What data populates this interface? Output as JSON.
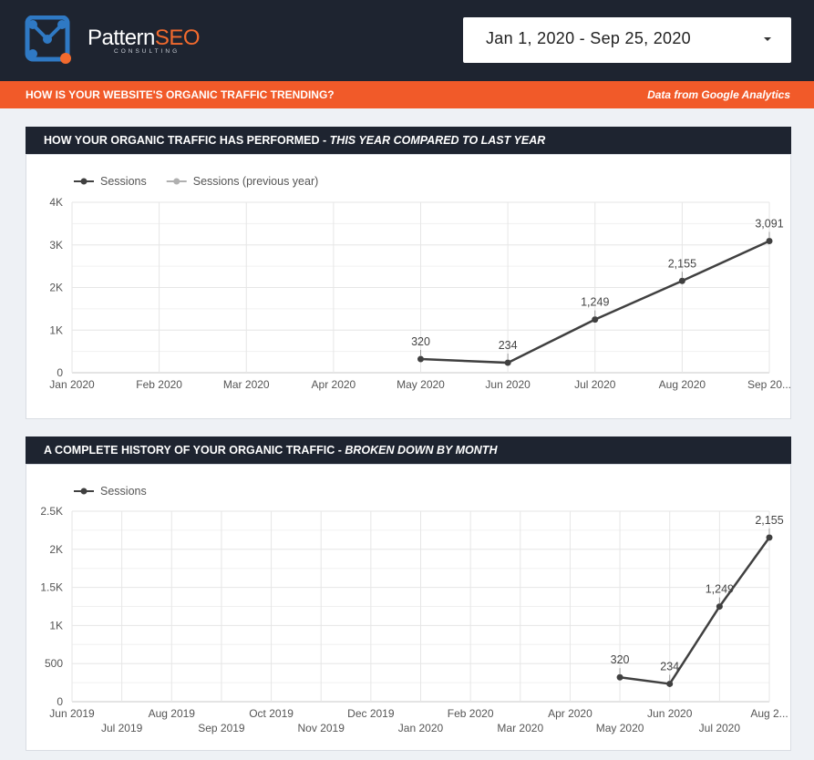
{
  "brand": {
    "name_part1": "Pattern",
    "name_part2": "SEO",
    "subtitle": "CONSULTING",
    "accent_color": "#f26a2e",
    "secondary_color": "#2f79c4"
  },
  "header": {
    "date_range": "Jan 1, 2020 - Sep 25, 2020",
    "question": "HOW IS YOUR WEBSITE'S ORGANIC TRAFFIC TRENDING?",
    "source": "Data from Google Analytics"
  },
  "section1": {
    "title_main": "HOW YOUR ORGANIC TRAFFIC HAS PERFORMED - ",
    "title_em": "THIS YEAR COMPARED TO LAST YEAR"
  },
  "section2": {
    "title_main": "A COMPLETE HISTORY OF YOUR ORGANIC TRAFFIC - ",
    "title_em": "BROKEN DOWN BY MONTH"
  },
  "chart_data": [
    {
      "type": "line",
      "x": [
        "Jan 2020",
        "Feb 2020",
        "Mar 2020",
        "Apr 2020",
        "May 2020",
        "Jun 2020",
        "Jul 2020",
        "Aug 2020",
        "Sep 20..."
      ],
      "series": [
        {
          "name": "Sessions",
          "color": "#404040",
          "values": [
            null,
            null,
            null,
            null,
            320,
            234,
            1249,
            2155,
            3091
          ],
          "labels": [
            "",
            "",
            "",
            "",
            "320",
            "234",
            "1,249",
            "2,155",
            "3,091"
          ]
        },
        {
          "name": "Sessions (previous year)",
          "color": "#b0b0b0",
          "values": [
            null,
            null,
            null,
            null,
            null,
            null,
            null,
            null,
            null
          ],
          "labels": []
        }
      ],
      "yticks": [
        "0",
        "1K",
        "2K",
        "3K",
        "4K"
      ],
      "ylim": [
        0,
        4000
      ],
      "grid": true,
      "legend": "top-left"
    },
    {
      "type": "line",
      "x": [
        "Jun 2019",
        "Jul 2019",
        "Aug 2019",
        "Sep 2019",
        "Oct 2019",
        "Nov 2019",
        "Dec 2019",
        "Jan 2020",
        "Feb 2020",
        "Mar 2020",
        "Apr 2020",
        "May 2020",
        "Jun 2020",
        "Jul 2020",
        "Aug 2..."
      ],
      "series": [
        {
          "name": "Sessions",
          "color": "#404040",
          "values": [
            null,
            null,
            null,
            null,
            null,
            null,
            null,
            null,
            null,
            null,
            null,
            320,
            234,
            1249,
            2155
          ],
          "labels": [
            "",
            "",
            "",
            "",
            "",
            "",
            "",
            "",
            "",
            "",
            "",
            "320",
            "234",
            "1,249",
            "2,155"
          ]
        }
      ],
      "yticks": [
        "0",
        "500",
        "1K",
        "1.5K",
        "2K",
        "2.5K"
      ],
      "ylim": [
        0,
        2500
      ],
      "grid": true,
      "legend": "top-left"
    }
  ]
}
